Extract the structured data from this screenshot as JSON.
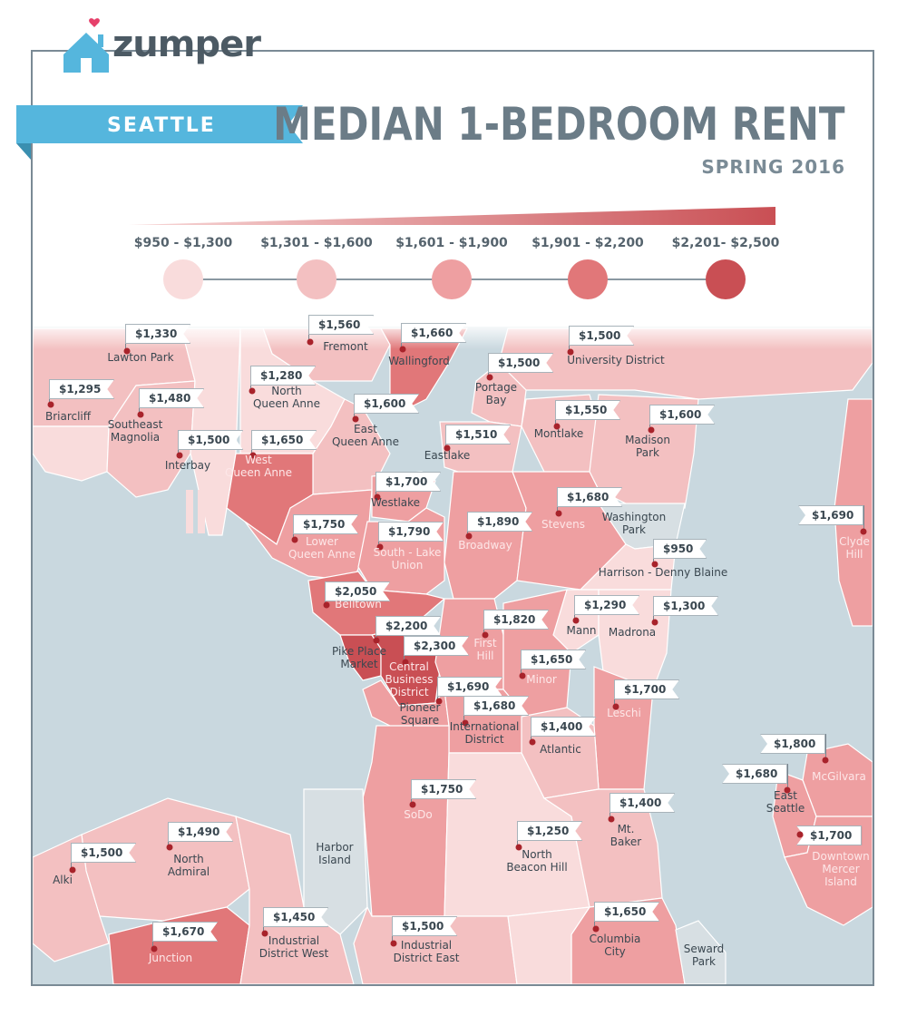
{
  "brand": {
    "logo_text": "zumper"
  },
  "header": {
    "city": "SEATTLE",
    "title": "MEDIAN 1-BEDROOM RENT",
    "subtitle": "SPRING 2016"
  },
  "colors": {
    "ribbon": "#55b6dd",
    "water": "#c9d8df",
    "tier1": "#f9dcdc",
    "tier2": "#f3c0c1",
    "tier3": "#ee9fa1",
    "tier4": "#e17779",
    "tier5": "#c94f54",
    "park": "#d7dfe3"
  },
  "legend": {
    "ranges": [
      "$950 - $1,300",
      "$1,301 - $1,600",
      "$1,601 - $1,900",
      "$1,901 - $2,200",
      "$2,201- $2,500"
    ]
  },
  "neighborhoods": [
    {
      "name": "Lawton Park",
      "price": "$1,330"
    },
    {
      "name": "Fremont",
      "price": "$1,560"
    },
    {
      "name": "Wallingford",
      "price": "$1,660"
    },
    {
      "name": "University District",
      "price": "$1,500"
    },
    {
      "name": "Briarcliff",
      "price": "$1,295"
    },
    {
      "name": "Southeast Magnolia",
      "price": "$1,480"
    },
    {
      "name": "North Queen Anne",
      "price": "$1,280"
    },
    {
      "name": "Portage Bay",
      "price": "$1,500"
    },
    {
      "name": "East Queen Anne",
      "price": "$1,600"
    },
    {
      "name": "Montlake",
      "price": "$1,550"
    },
    {
      "name": "Madison Park",
      "price": "$1,600"
    },
    {
      "name": "Interbay",
      "price": "$1,500"
    },
    {
      "name": "West Queen Anne",
      "price": "$1,650"
    },
    {
      "name": "Eastlake",
      "price": "$1,510"
    },
    {
      "name": "Westlake",
      "price": "$1,700"
    },
    {
      "name": "Stevens",
      "price": "$1,680"
    },
    {
      "name": "Lower Queen Anne",
      "price": "$1,750"
    },
    {
      "name": "Broadway",
      "price": "$1,890"
    },
    {
      "name": "South - Lake Union",
      "price": "$1,790"
    },
    {
      "name": "Clyde Hill",
      "price": "$1,690"
    },
    {
      "name": "Harrison - Denny Blaine",
      "price": "$950"
    },
    {
      "name": "Belltown",
      "price": "$2,050"
    },
    {
      "name": "Mann",
      "price": "$1,290"
    },
    {
      "name": "Madrona",
      "price": "$1,300"
    },
    {
      "name": "First Hill",
      "price": "$1,820"
    },
    {
      "name": "Pike Place Market",
      "price": "$2,200"
    },
    {
      "name": "Central Business District",
      "price": "$2,300"
    },
    {
      "name": "Minor",
      "price": "$1,650"
    },
    {
      "name": "Pioneer Square",
      "price": "$1,690"
    },
    {
      "name": "Leschi",
      "price": "$1,700"
    },
    {
      "name": "International District",
      "price": "$1,680"
    },
    {
      "name": "Atlantic",
      "price": "$1,400"
    },
    {
      "name": "McGilvara",
      "price": "$1,800"
    },
    {
      "name": "East Seattle",
      "price": "$1,680"
    },
    {
      "name": "SoDo",
      "price": "$1,750"
    },
    {
      "name": "Mt. Baker",
      "price": "$1,400"
    },
    {
      "name": "North Admiral",
      "price": "$1,490"
    },
    {
      "name": "North Beacon Hill",
      "price": "$1,250"
    },
    {
      "name": "Downtown Mercer Island",
      "price": "$1,700"
    },
    {
      "name": "Alki",
      "price": "$1,500"
    },
    {
      "name": "Junction",
      "price": "$1,670"
    },
    {
      "name": "Industrial District West",
      "price": "$1,450"
    },
    {
      "name": "Industrial District East",
      "price": "$1,500"
    },
    {
      "name": "Columbia City",
      "price": "$1,650"
    },
    {
      "name": "Harbor Island",
      "price": ""
    },
    {
      "name": "Washington Park",
      "price": ""
    },
    {
      "name": "Seward Park",
      "price": ""
    }
  ]
}
